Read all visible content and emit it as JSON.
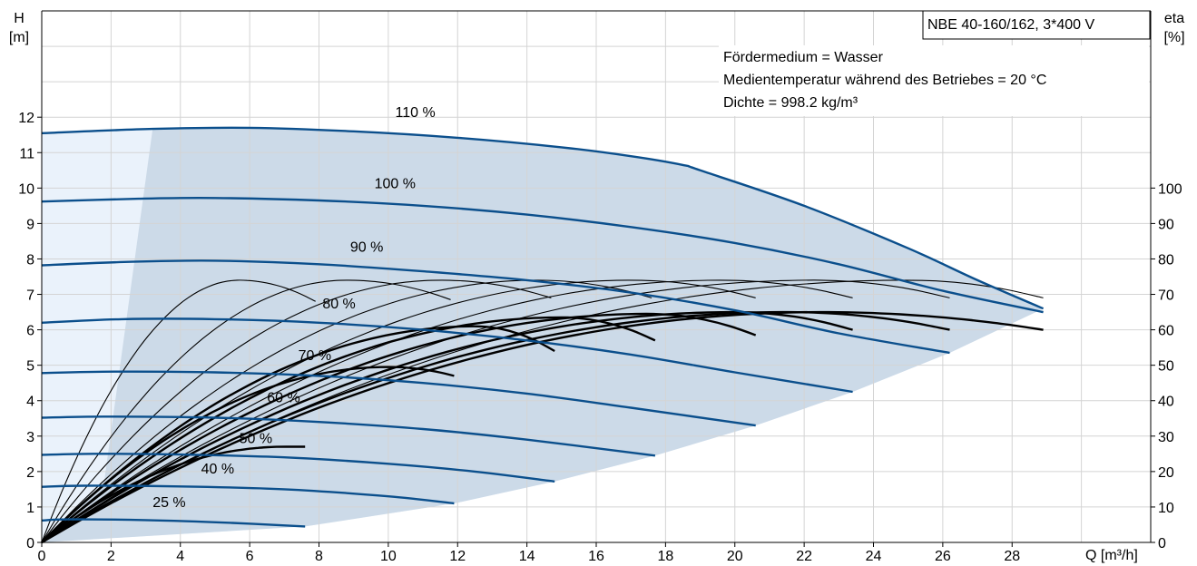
{
  "chart_data": {
    "type": "line",
    "title": "NBE 40-160/162, 3*400 V",
    "info_lines": [
      "Fördermedium = Wasser",
      "Medientemperatur während des Betriebes = 20 °C",
      "Dichte = 998.2 kg/m³"
    ],
    "x_axis": {
      "label": "Q [m³/h]",
      "min": 0,
      "max": 32,
      "ticks": [
        0,
        2,
        4,
        6,
        8,
        10,
        12,
        14,
        16,
        18,
        20,
        22,
        24,
        26,
        28
      ]
    },
    "y_axis_left": {
      "label_top": "H",
      "label_unit": "[m]",
      "min": 0,
      "max": 15,
      "ticks": [
        0,
        1,
        2,
        3,
        4,
        5,
        6,
        7,
        8,
        9,
        10,
        11,
        12
      ]
    },
    "y_axis_right": {
      "label_top": "eta",
      "label_unit": "[%]",
      "min": 0,
      "max": 150,
      "ticks": [
        0,
        10,
        20,
        30,
        40,
        50,
        60,
        70,
        80,
        90,
        100
      ]
    },
    "grid": true,
    "colors": {
      "head_curve": "#0b4f8c",
      "operating_area": "#ccdae8",
      "extended_area": "#eaf2fb",
      "efficiency": "#000000"
    },
    "speed_curves": [
      {
        "label": "110 %",
        "label_at": [
          10.2,
          12.0
        ],
        "points": [
          [
            0,
            11.55
          ],
          [
            3.2,
            11.67
          ],
          [
            6,
            11.7
          ],
          [
            9,
            11.6
          ],
          [
            12,
            11.42
          ],
          [
            15,
            11.15
          ],
          [
            17,
            10.9
          ],
          [
            18.5,
            10.65
          ],
          [
            19,
            10.5
          ],
          [
            22,
            9.5
          ],
          [
            25,
            8.3
          ],
          [
            27,
            7.4
          ],
          [
            28.9,
            6.6
          ]
        ]
      },
      {
        "label": "100 %",
        "label_at": [
          9.6,
          10.0
        ],
        "points": [
          [
            0,
            9.62
          ],
          [
            2.8,
            9.7
          ],
          [
            5,
            9.72
          ],
          [
            8,
            9.65
          ],
          [
            11,
            9.5
          ],
          [
            14,
            9.25
          ],
          [
            17,
            8.9
          ],
          [
            20,
            8.45
          ],
          [
            23,
            7.85
          ],
          [
            26,
            7.1
          ],
          [
            28.9,
            6.5
          ]
        ]
      },
      {
        "label": "90 %",
        "label_at": [
          8.9,
          8.2
        ],
        "points": [
          [
            0,
            7.82
          ],
          [
            2.6,
            7.92
          ],
          [
            5,
            7.95
          ],
          [
            8,
            7.85
          ],
          [
            11,
            7.65
          ],
          [
            14,
            7.4
          ],
          [
            17,
            7.05
          ],
          [
            20,
            6.55
          ],
          [
            23,
            5.9
          ],
          [
            26.2,
            5.35
          ]
        ]
      },
      {
        "label": "80 %",
        "label_at": [
          8.1,
          6.6
        ],
        "points": [
          [
            0,
            6.2
          ],
          [
            2.3,
            6.3
          ],
          [
            5,
            6.3
          ],
          [
            8,
            6.2
          ],
          [
            11,
            6.0
          ],
          [
            14,
            5.7
          ],
          [
            17,
            5.3
          ],
          [
            20,
            4.8
          ],
          [
            23.4,
            4.25
          ]
        ]
      },
      {
        "label": "70 %",
        "label_at": [
          7.4,
          5.15
        ],
        "points": [
          [
            0,
            4.78
          ],
          [
            2.1,
            4.82
          ],
          [
            5,
            4.8
          ],
          [
            8,
            4.7
          ],
          [
            11,
            4.5
          ],
          [
            14,
            4.2
          ],
          [
            17,
            3.8
          ],
          [
            20.6,
            3.3
          ]
        ]
      },
      {
        "label": "60 %",
        "label_at": [
          6.5,
          3.95
        ],
        "points": [
          [
            0,
            3.52
          ],
          [
            1.8,
            3.55
          ],
          [
            5,
            3.52
          ],
          [
            8,
            3.4
          ],
          [
            11,
            3.2
          ],
          [
            14,
            2.9
          ],
          [
            17.7,
            2.45
          ]
        ]
      },
      {
        "label": "50 %",
        "label_at": [
          5.7,
          2.8
        ],
        "points": [
          [
            0,
            2.47
          ],
          [
            1.5,
            2.5
          ],
          [
            4,
            2.48
          ],
          [
            7,
            2.4
          ],
          [
            10,
            2.22
          ],
          [
            12.5,
            2.0
          ],
          [
            14.8,
            1.72
          ]
        ]
      },
      {
        "label": "40 %",
        "label_at": [
          4.6,
          1.95
        ],
        "points": [
          [
            0,
            1.57
          ],
          [
            1.2,
            1.6
          ],
          [
            4,
            1.58
          ],
          [
            7,
            1.5
          ],
          [
            10,
            1.3
          ],
          [
            11.9,
            1.1
          ]
        ]
      },
      {
        "label": "25 %",
        "label_at": [
          3.2,
          1.0
        ],
        "points": [
          [
            0,
            0.62
          ],
          [
            0.8,
            0.65
          ],
          [
            3,
            0.63
          ],
          [
            5.5,
            0.55
          ],
          [
            7.6,
            0.45
          ]
        ]
      }
    ],
    "operating_area": {
      "lower_boundary": [
        [
          0,
          0
        ],
        [
          7.6,
          0.45
        ],
        [
          11.9,
          1.1
        ],
        [
          14.8,
          1.72
        ],
        [
          17.7,
          2.45
        ],
        [
          20.6,
          3.3
        ],
        [
          23.4,
          4.25
        ],
        [
          26.2,
          5.35
        ],
        [
          28.9,
          6.6
        ]
      ]
    },
    "efficiency_curves": [
      {
        "peak_eta": 74,
        "peak_q": 5.7,
        "end_q": 7.9,
        "end_eta": 68
      },
      {
        "peak_eta": 74,
        "peak_q": 8.8,
        "end_q": 11.8,
        "end_eta": 68.5
      },
      {
        "peak_eta": 74,
        "peak_q": 11.5,
        "end_q": 14.7,
        "end_eta": 69
      },
      {
        "peak_eta": 74,
        "peak_q": 14.3,
        "end_q": 17.6,
        "end_eta": 69
      },
      {
        "peak_eta": 74,
        "peak_q": 17.0,
        "end_q": 20.6,
        "end_eta": 69
      },
      {
        "peak_eta": 74,
        "peak_q": 19.6,
        "end_q": 23.4,
        "end_eta": 69
      },
      {
        "peak_eta": 74,
        "peak_q": 22.3,
        "end_q": 26.2,
        "end_eta": 69
      },
      {
        "peak_eta": 74,
        "peak_q": 25.0,
        "end_q": 28.9,
        "end_eta": 69
      },
      {
        "peak_eta": 27,
        "peak_q": 7.0,
        "end_q": 7.6,
        "end_eta": 27,
        "bold": true
      },
      {
        "peak_eta": 49.5,
        "peak_q": 10.0,
        "end_q": 11.9,
        "end_eta": 47,
        "bold": true
      },
      {
        "peak_eta": 61,
        "peak_q": 12.5,
        "end_q": 14.8,
        "end_eta": 54,
        "bold": true
      },
      {
        "peak_eta": 63.5,
        "peak_q": 15.0,
        "end_q": 17.7,
        "end_eta": 57,
        "bold": true
      },
      {
        "peak_eta": 64.5,
        "peak_q": 17.5,
        "end_q": 20.6,
        "end_eta": 58.5,
        "bold": true
      },
      {
        "peak_eta": 65,
        "peak_q": 20.0,
        "end_q": 23.4,
        "end_eta": 60,
        "bold": true
      },
      {
        "peak_eta": 65,
        "peak_q": 21.5,
        "end_q": 26.2,
        "end_eta": 60,
        "bold": true
      },
      {
        "peak_eta": 65,
        "peak_q": 22.5,
        "end_q": 28.9,
        "end_eta": 60,
        "bold": true
      }
    ]
  }
}
